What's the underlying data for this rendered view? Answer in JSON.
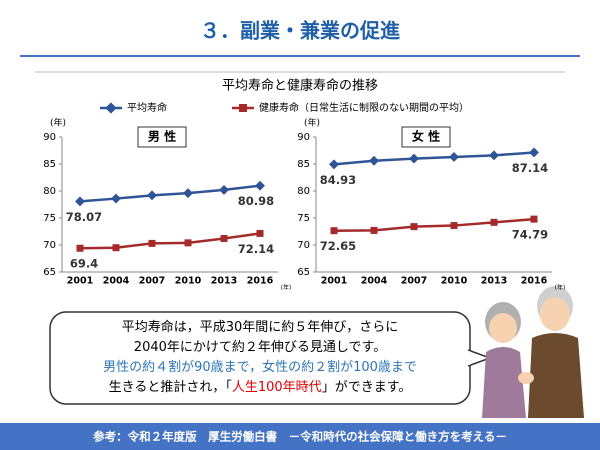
{
  "slide_title": "３．副業・兼業の促進",
  "chart_title": "平均寿命と健康寿命の推移",
  "legend": [
    {
      "name": "平均寿命",
      "color": "#2f5597"
    },
    {
      "name": "健康寿命（日常生活に制限のない期間の平均）",
      "color": "#a52a2a"
    }
  ],
  "chart_data": [
    {
      "type": "line",
      "label": "男 性",
      "y_unit": "(年)",
      "x_unit": "(年)",
      "categories": [
        "2001",
        "2004",
        "2007",
        "2010",
        "2013",
        "2016"
      ],
      "series": [
        {
          "color": "#2f5597",
          "values": [
            78.07,
            78.6,
            79.2,
            79.6,
            80.2,
            80.98
          ]
        },
        {
          "color": "#a52a2a",
          "values": [
            69.4,
            69.5,
            70.3,
            70.4,
            71.2,
            72.14
          ]
        }
      ],
      "ylim": [
        65,
        90
      ],
      "yticks": [
        65,
        70,
        75,
        80,
        85,
        90
      ],
      "grid": false
    },
    {
      "type": "line",
      "label": "女 性",
      "y_unit": "(年)",
      "x_unit": "(年)",
      "categories": [
        "2001",
        "2004",
        "2007",
        "2010",
        "2013",
        "2016"
      ],
      "series": [
        {
          "color": "#2f5597",
          "values": [
            84.93,
            85.6,
            86.0,
            86.3,
            86.6,
            87.14
          ]
        },
        {
          "color": "#a52a2a",
          "values": [
            72.65,
            72.7,
            73.4,
            73.6,
            74.2,
            74.79
          ]
        }
      ],
      "ylim": [
        65,
        90
      ],
      "yticks": [
        65,
        70,
        75,
        80,
        85,
        90
      ],
      "grid": false
    }
  ],
  "bubble": [
    [
      {
        "text": "平均寿命は，平成30年間に約５年伸び，さらに",
        "color": "#000000"
      }
    ],
    [
      {
        "text": "2040年にかけて約２年伸びる見通しです。",
        "color": "#000000"
      }
    ],
    [
      {
        "text": "男性の約４割が90歳まで，女性の約２割が100歳まで",
        "color": "#2e75b6"
      }
    ],
    [
      {
        "text": "生きると推計され，「",
        "color": "#000000"
      },
      {
        "text": "人生100年時代",
        "color": "#e00000"
      },
      {
        "text": "」ができます。",
        "color": "#000000"
      }
    ]
  ],
  "footer": "参考：令和２年度版　厚生労働白書　－令和時代の社会保障と働き方を考える－"
}
